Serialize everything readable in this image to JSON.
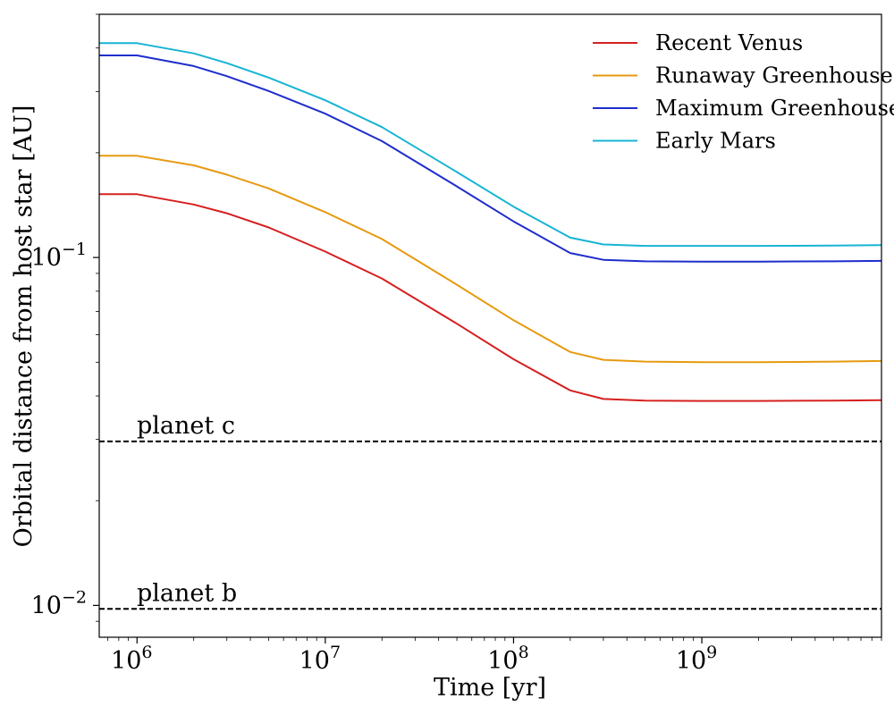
{
  "chart_data": {
    "type": "line",
    "title": "",
    "xlabel": "Time [yr]",
    "ylabel": "Orbital distance from host star [AU]",
    "xscale": "log",
    "yscale": "log",
    "xlim": [
      630000,
      9000000000
    ],
    "ylim": [
      0.0081,
      0.5
    ],
    "grid": false,
    "legend": "top-right",
    "x_ticks": [
      {
        "base": "10",
        "exp": "6",
        "value": 1000000
      },
      {
        "base": "10",
        "exp": "7",
        "value": 10000000
      },
      {
        "base": "10",
        "exp": "8",
        "value": 100000000
      },
      {
        "base": "10",
        "exp": "9",
        "value": 1000000000
      }
    ],
    "y_ticks": [
      {
        "base": "10",
        "exp": "−1",
        "value": 0.1
      },
      {
        "base": "10",
        "exp": "−2",
        "value": 0.01
      }
    ],
    "x": [
      630000,
      1000000,
      2000000,
      3000000,
      5000000,
      10000000,
      20000000,
      50000000,
      100000000,
      200000000,
      300000000,
      500000000,
      1000000000,
      2000000000,
      5000000000,
      9000000000
    ],
    "series": [
      {
        "name": "Recent Venus",
        "color": "#d62020",
        "values": [
          0.152,
          0.152,
          0.142,
          0.134,
          0.122,
          0.104,
          0.087,
          0.0645,
          0.051,
          0.0415,
          0.0392,
          0.0388,
          0.0387,
          0.0387,
          0.0388,
          0.0389
        ]
      },
      {
        "name": "Runaway Greenhouse",
        "color": "#e69a10",
        "values": [
          0.196,
          0.196,
          0.184,
          0.173,
          0.158,
          0.135,
          0.113,
          0.0835,
          0.066,
          0.0535,
          0.0508,
          0.0502,
          0.05,
          0.05,
          0.0502,
          0.0504
        ]
      },
      {
        "name": "Maximum Greenhouse",
        "color": "#1f2dcc",
        "values": [
          0.381,
          0.381,
          0.355,
          0.332,
          0.301,
          0.259,
          0.216,
          0.16,
          0.127,
          0.103,
          0.0985,
          0.0975,
          0.0973,
          0.0973,
          0.0975,
          0.0978
        ]
      },
      {
        "name": "Early Mars",
        "color": "#17b4d4",
        "values": [
          0.413,
          0.413,
          0.386,
          0.362,
          0.329,
          0.283,
          0.237,
          0.176,
          0.14,
          0.114,
          0.109,
          0.108,
          0.108,
          0.108,
          0.1082,
          0.1085
        ]
      }
    ],
    "reference_lines": [
      {
        "label": "planet c",
        "value": 0.0296
      },
      {
        "label": "planet b",
        "value": 0.00977
      }
    ]
  }
}
